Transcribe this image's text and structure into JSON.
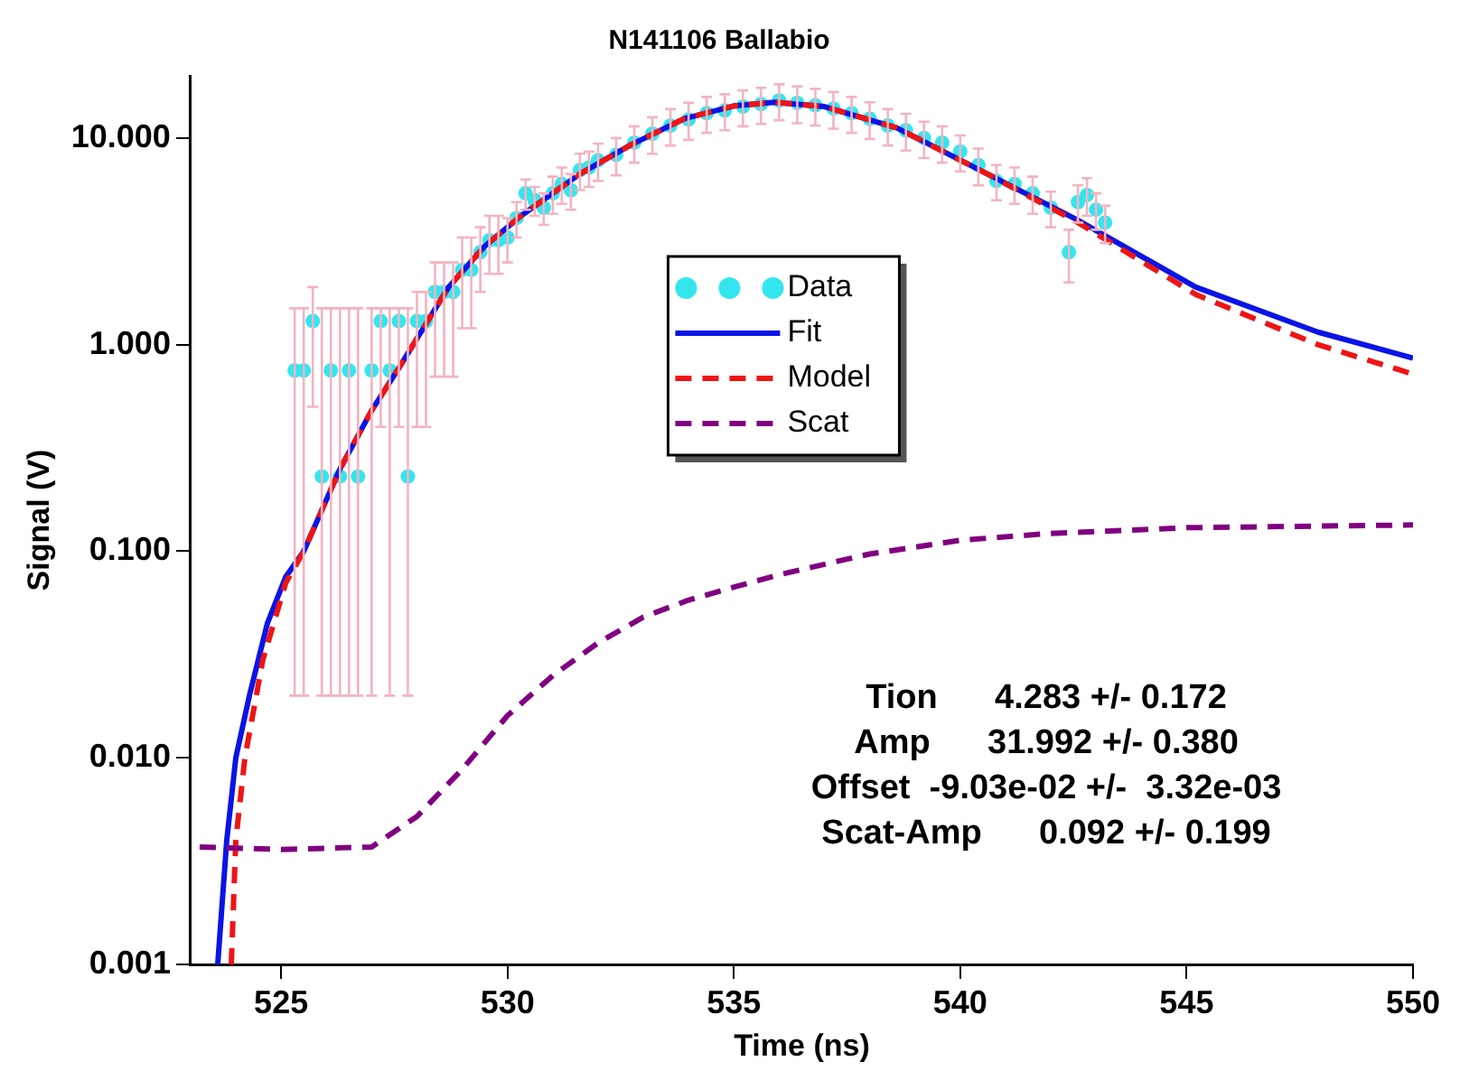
{
  "chart_data": {
    "type": "line",
    "title": "N141106 Ballabio",
    "xlabel": "Time (ns)",
    "ylabel": "Signal (V)",
    "log": "y",
    "grid": false,
    "legend": "top",
    "xlim": [
      523,
      550
    ],
    "ylim": [
      0.001,
      20
    ],
    "xticks": [
      525,
      530,
      535,
      540,
      545,
      550
    ],
    "yticks": [
      {
        "value": 0.001,
        "label": "0.001"
      },
      {
        "value": 0.01,
        "label": "0.010"
      },
      {
        "value": 0.1,
        "label": "0.100"
      },
      {
        "value": 1,
        "label": "1.000"
      },
      {
        "value": 10,
        "label": "10.000"
      }
    ],
    "series": [
      {
        "name": "Data",
        "type": "scatter",
        "marker": "circle",
        "color": "#33e6ee",
        "x": [
          525.3,
          525.5,
          525.7,
          525.9,
          526.1,
          526.3,
          526.5,
          526.7,
          527.0,
          527.2,
          527.4,
          527.6,
          527.8,
          528.0,
          528.2,
          528.4,
          528.6,
          528.8,
          529.0,
          529.2,
          529.4,
          529.6,
          529.8,
          530.0,
          530.2,
          530.4,
          530.6,
          530.8,
          531.0,
          531.2,
          531.4,
          531.6,
          531.8,
          532.0,
          532.4,
          532.8,
          533.2,
          533.6,
          534.0,
          534.4,
          534.8,
          535.2,
          535.6,
          536.0,
          536.4,
          536.8,
          537.2,
          537.6,
          538.0,
          538.4,
          538.8,
          539.2,
          539.6,
          540.0,
          540.4,
          540.8,
          541.2,
          541.6,
          542.0,
          542.4,
          542.6,
          542.8,
          543.0,
          543.2
        ],
        "values": [
          0.75,
          0.75,
          1.3,
          0.23,
          0.75,
          0.23,
          0.75,
          0.23,
          0.75,
          1.3,
          0.75,
          1.3,
          0.23,
          1.3,
          1.3,
          1.8,
          1.8,
          1.8,
          2.3,
          2.3,
          2.8,
          3.2,
          3.2,
          3.3,
          4.1,
          5.4,
          5.0,
          4.6,
          5.4,
          6.0,
          5.6,
          7.0,
          7.2,
          7.8,
          8.3,
          9.5,
          10.5,
          11.5,
          12.3,
          13.2,
          13.6,
          14.2,
          14.6,
          15.2,
          14.8,
          14.4,
          13.9,
          13.2,
          12.4,
          11.5,
          10.9,
          10.0,
          9.5,
          8.6,
          7.4,
          6.2,
          6.0,
          5.4,
          4.6,
          2.8,
          4.9,
          5.3,
          4.5,
          3.9
        ],
        "errors": [
          [
            0.02,
            1.5
          ],
          [
            0.02,
            1.5
          ],
          [
            0.5,
            1.9
          ],
          [
            0.02,
            1.5
          ],
          [
            0.02,
            1.5
          ],
          [
            0.02,
            1.5
          ],
          [
            0.02,
            1.5
          ],
          [
            0.02,
            1.5
          ],
          [
            0.02,
            1.5
          ],
          [
            0.4,
            1.5
          ],
          [
            0.02,
            1.5
          ],
          [
            0.4,
            1.5
          ],
          [
            0.02,
            1.5
          ],
          [
            0.4,
            1.8
          ],
          [
            0.4,
            1.8
          ],
          [
            0.7,
            2.5
          ],
          [
            0.7,
            2.5
          ],
          [
            0.7,
            2.5
          ],
          [
            1.2,
            3.3
          ],
          [
            1.2,
            3.3
          ],
          [
            1.8,
            3.7
          ],
          [
            2.2,
            4.2
          ],
          [
            2.2,
            4.2
          ],
          [
            2.5,
            4.1
          ],
          [
            3.3,
            4.9
          ],
          [
            4.5,
            6.3
          ],
          [
            4.2,
            5.8
          ],
          [
            3.8,
            5.4
          ],
          [
            4.3,
            6.5
          ],
          [
            4.8,
            7.2
          ],
          [
            4.5,
            6.7
          ],
          [
            5.6,
            8.4
          ],
          [
            5.8,
            8.6
          ],
          [
            6.2,
            9.4
          ],
          [
            6.6,
            10.0
          ],
          [
            7.6,
            11.4
          ],
          [
            8.4,
            12.6
          ],
          [
            9.2,
            13.8
          ],
          [
            9.8,
            14.8
          ],
          [
            10.6,
            15.8
          ],
          [
            10.9,
            16.3
          ],
          [
            11.4,
            17.0
          ],
          [
            11.7,
            17.5
          ],
          [
            12.2,
            18.2
          ],
          [
            11.8,
            17.8
          ],
          [
            11.5,
            17.3
          ],
          [
            11.1,
            16.7
          ],
          [
            10.6,
            15.8
          ],
          [
            9.9,
            14.9
          ],
          [
            9.2,
            13.8
          ],
          [
            8.7,
            13.1
          ],
          [
            8.0,
            12.0
          ],
          [
            7.6,
            11.4
          ],
          [
            6.9,
            10.3
          ],
          [
            5.9,
            8.9
          ],
          [
            5.0,
            7.4
          ],
          [
            4.8,
            7.2
          ],
          [
            4.3,
            6.5
          ],
          [
            3.7,
            5.5
          ],
          [
            2.0,
            3.6
          ],
          [
            3.9,
            5.9
          ],
          [
            4.2,
            6.4
          ],
          [
            3.6,
            5.4
          ],
          [
            3.1,
            4.7
          ]
        ]
      },
      {
        "name": "Fit",
        "type": "line",
        "marker": "none",
        "line_style": "solid",
        "color": "#0a14e6",
        "x": [
          523.6,
          523.7,
          523.8,
          524.0,
          524.3,
          524.7,
          525.1,
          525.5,
          526.3,
          527.0,
          527.6,
          528.7,
          529.5,
          530.3,
          531.6,
          532.7,
          533.9,
          535.0,
          535.9,
          537.0,
          538.6,
          540.6,
          542.6,
          545.2,
          547.9,
          550
        ],
        "values": [
          0.001,
          0.002,
          0.004,
          0.01,
          0.02,
          0.045,
          0.075,
          0.1,
          0.25,
          0.48,
          0.77,
          1.9,
          3.0,
          4.2,
          6.7,
          9.2,
          12.4,
          14.3,
          14.9,
          14.2,
          11.2,
          6.7,
          4.0,
          1.9,
          1.15,
          0.86
        ]
      },
      {
        "name": "Model",
        "type": "line",
        "marker": "none",
        "line_style": "dashed",
        "color": "#f01414",
        "x": [
          523.9,
          524.0,
          524.2,
          524.6,
          525.1,
          525.5,
          526.3,
          527.0,
          527.6,
          528.7,
          529.5,
          530.3,
          531.6,
          532.7,
          533.9,
          535.0,
          535.9,
          537.0,
          538.6,
          540.6,
          542.6,
          545.2,
          547.9,
          550
        ],
        "values": [
          0.001,
          0.004,
          0.01,
          0.03,
          0.07,
          0.1,
          0.25,
          0.48,
          0.77,
          1.9,
          3.0,
          4.2,
          6.7,
          9.2,
          12.4,
          14.3,
          14.9,
          14.2,
          11.2,
          6.7,
          3.9,
          1.75,
          1.0,
          0.72
        ]
      },
      {
        "name": "Scat",
        "type": "line",
        "marker": "none",
        "line_style": "dashed",
        "color": "#800080",
        "x": [
          523.2,
          525,
          527,
          528,
          529,
          530,
          531,
          532,
          533,
          534,
          535,
          536,
          538,
          540,
          542,
          545,
          550
        ],
        "values": [
          0.0037,
          0.0036,
          0.0037,
          0.0052,
          0.0088,
          0.016,
          0.025,
          0.036,
          0.048,
          0.058,
          0.067,
          0.077,
          0.097,
          0.113,
          0.122,
          0.13,
          0.134
        ]
      }
    ],
    "annotations": [
      "Tion      4.283 +/- 0.172",
      "Amp      31.992 +/- 0.380",
      "Offset  -9.03e-02 +/-  3.32e-03",
      "Scat-Amp      0.092 +/- 0.199"
    ]
  }
}
